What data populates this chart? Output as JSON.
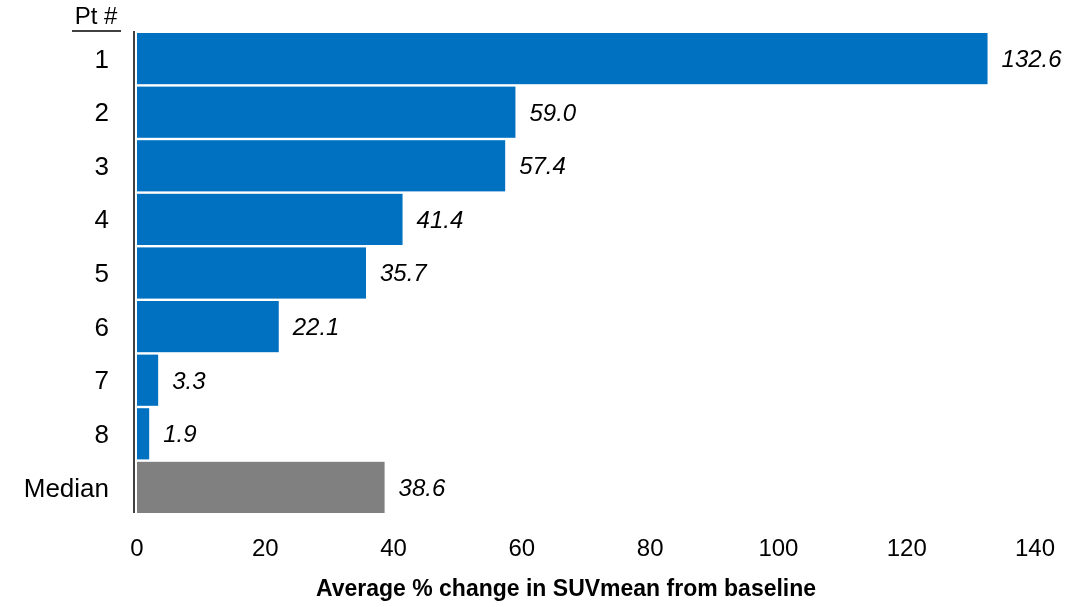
{
  "chart_data": {
    "type": "bar",
    "orientation": "horizontal",
    "ylabel": "Pt #",
    "xlabel": "Average % change in SUVmean from baseline",
    "categories": [
      "1",
      "2",
      "3",
      "4",
      "5",
      "6",
      "7",
      "8",
      "Median"
    ],
    "values": [
      132.6,
      59.0,
      57.4,
      41.4,
      35.7,
      22.1,
      3.3,
      1.9,
      38.6
    ],
    "value_labels": [
      "132.6",
      "59.0",
      "57.4",
      "41.4",
      "35.7",
      "22.1",
      "3.3",
      "1.9",
      "38.6"
    ],
    "colors": [
      "#0070c0",
      "#0070c0",
      "#0070c0",
      "#0070c0",
      "#0070c0",
      "#0070c0",
      "#0070c0",
      "#0070c0",
      "#808080"
    ],
    "xlim": [
      0,
      140
    ],
    "xticks": [
      0,
      20,
      40,
      60,
      80,
      100,
      120,
      140
    ],
    "grid": false
  }
}
